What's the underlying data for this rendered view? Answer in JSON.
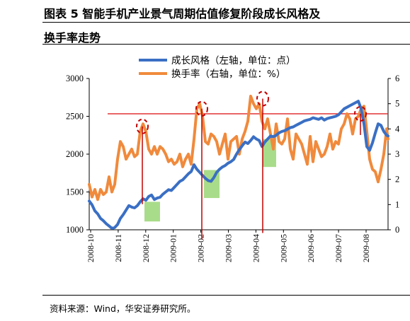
{
  "header": {
    "title_line1": "图表 5 智能手机产业景气周期估值修复阶段成长风格及",
    "title_line2": "换手率走势"
  },
  "source": "资料来源：Wind，华安证券研究所。",
  "colors": {
    "growth": "#3a6fc4",
    "turnover": "#f08a3c",
    "threshold": "#e02020",
    "marker": "#c00000",
    "shade": "#a9dc8a"
  },
  "chart_data": {
    "type": "line",
    "x_tick_labels": [
      "2008-10",
      "2008-11",
      "2008-12",
      "2009-01",
      "2009-02",
      "2009-03",
      "2009-04",
      "2009-05",
      "2009-06",
      "2009-07",
      "2009-08"
    ],
    "left_axis": {
      "ylim": [
        1000,
        3000
      ],
      "ticks": [
        "1000",
        "1500",
        "2000",
        "2500",
        "3000"
      ]
    },
    "right_axis": {
      "ylim": [
        0,
        6
      ],
      "ticks": [
        "0",
        "1",
        "2",
        "3",
        "4",
        "5",
        "6"
      ]
    },
    "threshold_value": 4.6,
    "series": [
      {
        "name": "成长风格（左轴，单位：点）",
        "axis": "left",
        "x": [
          0,
          4,
          8,
          12,
          16,
          20,
          24,
          28,
          32,
          36,
          40,
          44,
          48,
          52,
          56,
          60,
          64,
          68,
          72,
          76,
          80,
          84,
          88,
          92,
          96,
          100,
          104,
          108,
          112,
          116,
          120,
          124,
          128,
          132,
          136,
          140,
          144,
          148,
          152,
          156,
          160,
          164,
          168,
          172,
          176,
          180,
          184,
          188,
          192,
          196,
          200,
          204,
          208,
          212,
          216,
          220,
          224,
          228,
          232,
          236,
          240,
          244,
          248,
          252,
          256,
          260,
          264,
          268,
          272,
          276,
          280,
          284,
          288,
          292,
          296,
          300,
          304,
          308,
          312,
          316,
          320,
          324,
          328,
          332,
          336,
          340,
          344,
          348,
          352,
          356,
          360,
          364,
          368,
          372,
          376,
          380,
          384,
          388,
          392,
          396,
          400,
          404,
          408,
          412,
          416,
          420,
          422
        ],
        "values": [
          1380,
          1330,
          1250,
          1210,
          1150,
          1120,
          1080,
          1050,
          1020,
          1030,
          1070,
          1150,
          1200,
          1260,
          1320,
          1300,
          1290,
          1320,
          1370,
          1410,
          1390,
          1440,
          1460,
          1400,
          1420,
          1430,
          1470,
          1500,
          1530,
          1520,
          1560,
          1600,
          1640,
          1660,
          1700,
          1740,
          1770,
          1860,
          1800,
          1760,
          1720,
          1680,
          1650,
          1640,
          1690,
          1760,
          1800,
          1830,
          1850,
          1880,
          1900,
          1930,
          2000,
          2060,
          2110,
          2160,
          2140,
          2180,
          2230,
          2200,
          2180,
          2100,
          2160,
          2200,
          2240,
          2230,
          2250,
          2280,
          2300,
          2310,
          2330,
          2350,
          2360,
          2380,
          2400,
          2420,
          2440,
          2450,
          2460,
          2480,
          2470,
          2460,
          2480,
          2450,
          2470,
          2480,
          2490,
          2500,
          2520,
          2560,
          2600,
          2620,
          2640,
          2660,
          2680,
          2700,
          2600,
          2400,
          2100,
          2050,
          2150,
          2280,
          2400,
          2380,
          2300,
          2250,
          2240
        ]
      },
      {
        "name": "换手率（右轴，单位：%）",
        "axis": "right",
        "x": [
          0,
          4,
          8,
          12,
          16,
          20,
          24,
          28,
          32,
          36,
          40,
          44,
          48,
          52,
          56,
          60,
          64,
          68,
          72,
          76,
          80,
          84,
          88,
          92,
          96,
          100,
          104,
          108,
          112,
          116,
          120,
          124,
          128,
          132,
          136,
          140,
          144,
          148,
          152,
          156,
          160,
          164,
          168,
          172,
          176,
          180,
          184,
          188,
          192,
          196,
          200,
          204,
          208,
          212,
          216,
          220,
          224,
          228,
          232,
          236,
          240,
          244,
          248,
          252,
          256,
          260,
          264,
          268,
          272,
          276,
          280,
          284,
          288,
          292,
          296,
          300,
          304,
          308,
          312,
          316,
          320,
          324,
          328,
          332,
          336,
          340,
          344,
          348,
          352,
          356,
          360,
          364,
          368,
          372,
          376,
          380,
          384,
          388,
          392,
          396,
          400,
          404,
          408,
          412,
          416,
          420,
          422
        ],
        "values": [
          1.8,
          1.3,
          1.6,
          1.2,
          1.6,
          1.4,
          1.5,
          2.1,
          1.5,
          1.8,
          2.8,
          3.5,
          3.3,
          2.8,
          3.0,
          3.2,
          2.9,
          3.0,
          3.9,
          4.2,
          3.9,
          3.2,
          3.0,
          3.3,
          3.0,
          3.3,
          3.2,
          3.0,
          2.7,
          2.8,
          2.6,
          2.7,
          3.0,
          2.5,
          2.8,
          3.0,
          2.6,
          3.6,
          4.8,
          5.0,
          4.5,
          3.5,
          3.4,
          3.8,
          3.7,
          3.5,
          3.0,
          3.4,
          3.8,
          2.8,
          3.5,
          3.6,
          3.7,
          3.0,
          3.6,
          3.9,
          4.3,
          5.3,
          5.0,
          4.8,
          5.0,
          4.3,
          4.0,
          4.4,
          3.8,
          3.2,
          4.2,
          3.5,
          3.4,
          3.6,
          4.4,
          3.2,
          2.8,
          3.8,
          3.6,
          3.4,
          3.0,
          2.6,
          3.7,
          2.7,
          3.5,
          3.2,
          2.9,
          3.0,
          3.3,
          3.8,
          3.2,
          3.5,
          3.4,
          4.0,
          4.2,
          4.6,
          4.4,
          3.8,
          4.4,
          4.5,
          4.8,
          4.9,
          3.9,
          2.8,
          2.4,
          2.3,
          1.9,
          2.4,
          3.0,
          4.0,
          3.6
        ]
      }
    ],
    "markers": [
      {
        "x": 75,
        "value": 4.1,
        "height": 110
      },
      {
        "x": 159,
        "value": 4.8,
        "height": 185
      },
      {
        "x": 245,
        "value": 5.2,
        "height": 190
      },
      {
        "x": 383,
        "value": 4.6,
        "height": 30
      }
    ],
    "shaded": [
      {
        "x0": 78,
        "x1": 100,
        "y0": 1370,
        "y1": 1110
      },
      {
        "x0": 162,
        "x1": 184,
        "y0": 1790,
        "y1": 1420
      },
      {
        "x0": 245,
        "x1": 264,
        "y0": 2200,
        "y1": 1830
      }
    ]
  }
}
